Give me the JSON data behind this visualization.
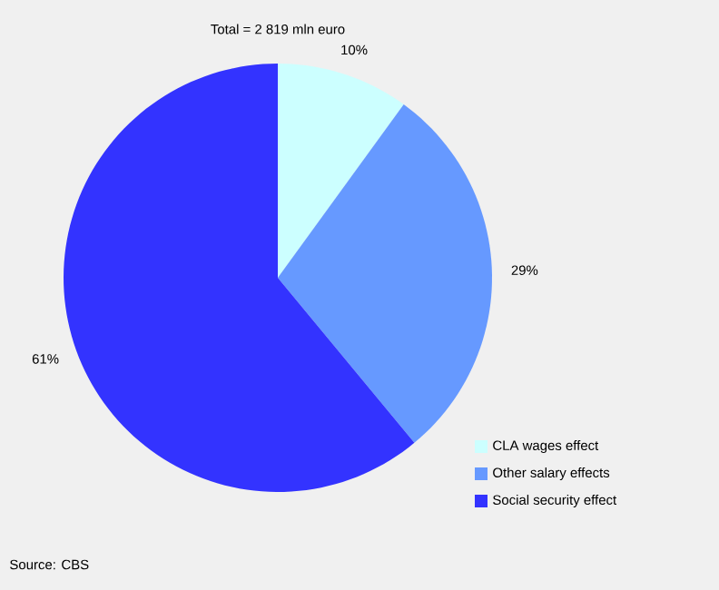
{
  "chart_data": {
    "type": "pie",
    "title": "Total = 2 819 mln euro",
    "categories": [
      "CLA wages effect",
      "Other salary effects",
      "Social security effect"
    ],
    "values": [
      10,
      29,
      61
    ],
    "colors": [
      "#ccffff",
      "#6699ff",
      "#3333ff"
    ],
    "value_labels": [
      "10%",
      "29%",
      "61%"
    ],
    "legend": "bottom right",
    "annotations": [
      "Source: CBS"
    ]
  }
}
